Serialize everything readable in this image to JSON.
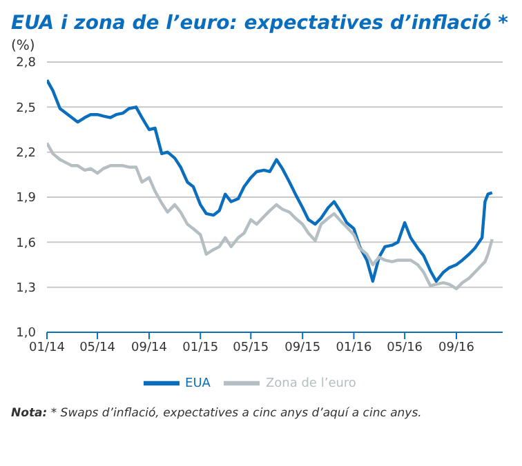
{
  "chart_data": {
    "type": "line",
    "title": "EUA i zona de l’euro: expectatives d’inflació *",
    "ylabel": "(%)",
    "x": [
      "2014-01-01",
      "2014-01-15",
      "2014-02-01",
      "2014-02-15",
      "2014-03-01",
      "2014-03-15",
      "2014-04-01",
      "2014-04-15",
      "2014-05-01",
      "2014-05-15",
      "2014-06-01",
      "2014-06-15",
      "2014-07-01",
      "2014-07-15",
      "2014-08-01",
      "2014-08-15",
      "2014-09-01",
      "2014-09-15",
      "2014-10-01",
      "2014-10-15",
      "2014-11-01",
      "2014-11-15",
      "2014-12-01",
      "2014-12-15",
      "2015-01-01",
      "2015-01-15",
      "2015-02-01",
      "2015-02-15",
      "2015-03-01",
      "2015-03-15",
      "2015-04-01",
      "2015-04-15",
      "2015-05-01",
      "2015-05-15",
      "2015-06-01",
      "2015-06-15",
      "2015-07-01",
      "2015-07-15",
      "2015-08-01",
      "2015-08-15",
      "2015-09-01",
      "2015-09-15",
      "2015-10-01",
      "2015-10-15",
      "2015-11-01",
      "2015-11-15",
      "2015-12-01",
      "2015-12-15",
      "2016-01-01",
      "2016-01-15",
      "2016-02-01",
      "2016-02-15",
      "2016-03-01",
      "2016-03-15",
      "2016-04-01",
      "2016-04-15",
      "2016-05-01",
      "2016-05-15",
      "2016-06-01",
      "2016-06-15",
      "2016-07-01",
      "2016-07-15",
      "2016-08-01",
      "2016-08-15",
      "2016-09-01",
      "2016-09-15",
      "2016-10-01",
      "2016-10-15",
      "2016-11-01",
      "2016-11-08",
      "2016-11-15",
      "2016-11-25"
    ],
    "series": [
      {
        "name": "EUA",
        "color": "#0a6ebd",
        "values": [
          2.68,
          2.61,
          2.49,
          2.46,
          2.43,
          2.4,
          2.43,
          2.45,
          2.45,
          2.44,
          2.43,
          2.45,
          2.46,
          2.49,
          2.5,
          2.43,
          2.35,
          2.36,
          2.19,
          2.2,
          2.16,
          2.1,
          2.0,
          1.97,
          1.85,
          1.79,
          1.78,
          1.81,
          1.92,
          1.87,
          1.89,
          1.97,
          2.03,
          2.07,
          2.08,
          2.07,
          2.15,
          2.09,
          2.0,
          1.92,
          1.83,
          1.75,
          1.72,
          1.76,
          1.83,
          1.87,
          1.8,
          1.73,
          1.69,
          1.57,
          1.48,
          1.34,
          1.5,
          1.57,
          1.58,
          1.6,
          1.73,
          1.63,
          1.56,
          1.51,
          1.41,
          1.34,
          1.4,
          1.43,
          1.45,
          1.48,
          1.52,
          1.56,
          1.63,
          1.87,
          1.92,
          1.93
        ]
      },
      {
        "name": "Zona de l’euro",
        "color": "#b4bec3",
        "values": [
          2.26,
          2.19,
          2.15,
          2.13,
          2.11,
          2.11,
          2.08,
          2.09,
          2.06,
          2.09,
          2.11,
          2.11,
          2.11,
          2.1,
          2.1,
          2.0,
          2.03,
          1.94,
          1.86,
          1.8,
          1.85,
          1.8,
          1.72,
          1.69,
          1.65,
          1.52,
          1.55,
          1.57,
          1.63,
          1.57,
          1.63,
          1.66,
          1.75,
          1.72,
          1.77,
          1.81,
          1.85,
          1.82,
          1.8,
          1.76,
          1.72,
          1.66,
          1.61,
          1.72,
          1.76,
          1.79,
          1.74,
          1.7,
          1.65,
          1.56,
          1.52,
          1.45,
          1.5,
          1.48,
          1.47,
          1.48,
          1.48,
          1.48,
          1.45,
          1.4,
          1.31,
          1.32,
          1.33,
          1.32,
          1.29,
          1.33,
          1.36,
          1.4,
          1.45,
          1.47,
          1.52,
          1.62
        ]
      }
    ],
    "xlim": [
      "2014-01-01",
      "2016-12-20"
    ],
    "xticks": [
      {
        "value": "2014-01",
        "label": "01/14"
      },
      {
        "value": "2014-05",
        "label": "05/14"
      },
      {
        "value": "2014-09",
        "label": "09/14"
      },
      {
        "value": "2015-01",
        "label": "01/15"
      },
      {
        "value": "2015-05",
        "label": "05/15"
      },
      {
        "value": "2015-09",
        "label": "09/15"
      },
      {
        "value": "2016-01",
        "label": "01/16"
      },
      {
        "value": "2016-05",
        "label": "05/16"
      },
      {
        "value": "2016-09",
        "label": "09/16"
      }
    ],
    "ylim": [
      1.0,
      2.8
    ],
    "yticks": [
      {
        "value": 1.0,
        "label": "1,0"
      },
      {
        "value": 1.3,
        "label": "1,3"
      },
      {
        "value": 1.6,
        "label": "1,6"
      },
      {
        "value": 1.9,
        "label": "1,9"
      },
      {
        "value": 2.2,
        "label": "2,2"
      },
      {
        "value": 2.5,
        "label": "2,5"
      },
      {
        "value": 2.8,
        "label": "2,8"
      }
    ],
    "grid": "y",
    "legend": "bottom",
    "marker": "none",
    "line_style": "solid",
    "annotations": [
      "Nota: * Swaps d’inflació, expectatives a cinc anys d’aquí a cinc anys."
    ]
  }
}
